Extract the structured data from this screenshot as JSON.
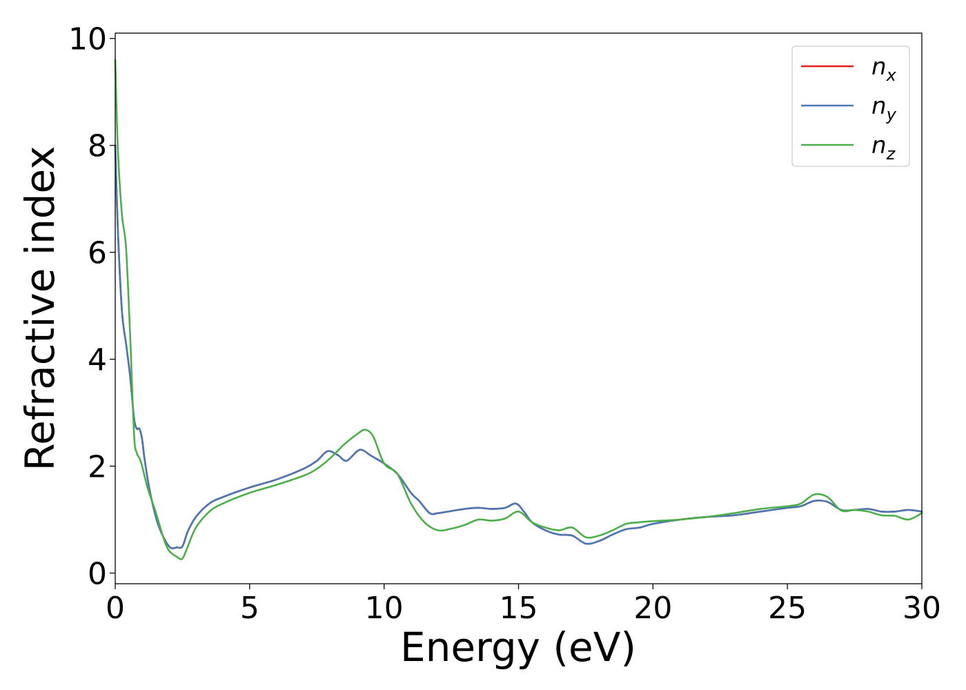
{
  "chart_data": {
    "type": "line",
    "title": "",
    "xlabel": "Energy (eV)",
    "ylabel": "Refractive index",
    "xlim": [
      0,
      30
    ],
    "ylim": [
      -0.2,
      10.1
    ],
    "xticks": [
      0,
      5,
      10,
      15,
      20,
      25,
      30
    ],
    "yticks": [
      0,
      2,
      4,
      6,
      8,
      10
    ],
    "grid": false,
    "legend_position": "top-right",
    "series": [
      {
        "name": "n",
        "subscript": "x",
        "color": "#e41a1c",
        "x": [
          0,
          0.1,
          0.25,
          0.4,
          0.55,
          0.7,
          0.8,
          0.9,
          1.0,
          1.1,
          1.3,
          1.6,
          2.0,
          2.3,
          2.5,
          2.7,
          3.0,
          3.5,
          4.0,
          5.0,
          6.0,
          7.0,
          7.5,
          7.8,
          8.0,
          8.3,
          8.6,
          9.0,
          9.2,
          9.5,
          10.0,
          10.5,
          11.0,
          11.3,
          11.7,
          12.0,
          12.5,
          13.0,
          13.5,
          14.0,
          14.5,
          14.9,
          15.2,
          15.5,
          16.0,
          16.5,
          17.0,
          17.5,
          18.0,
          18.5,
          19.0,
          19.5,
          20.0,
          21.0,
          22.0,
          23.0,
          24.0,
          25.0,
          25.5,
          26.0,
          26.5,
          27.0,
          27.5,
          28.0,
          28.5,
          29.0,
          29.5,
          30.0
        ],
        "y": [
          8.0,
          6.4,
          4.9,
          4.3,
          3.7,
          2.9,
          2.7,
          2.7,
          2.5,
          2.1,
          1.5,
          0.9,
          0.5,
          0.48,
          0.5,
          0.78,
          1.05,
          1.3,
          1.42,
          1.6,
          1.75,
          1.95,
          2.1,
          2.25,
          2.28,
          2.2,
          2.1,
          2.28,
          2.3,
          2.2,
          2.05,
          1.85,
          1.5,
          1.35,
          1.12,
          1.12,
          1.16,
          1.2,
          1.22,
          1.2,
          1.22,
          1.3,
          1.15,
          0.95,
          0.8,
          0.72,
          0.7,
          0.55,
          0.6,
          0.72,
          0.82,
          0.85,
          0.92,
          1.0,
          1.05,
          1.08,
          1.15,
          1.22,
          1.25,
          1.35,
          1.33,
          1.18,
          1.18,
          1.2,
          1.15,
          1.15,
          1.18,
          1.15
        ]
      },
      {
        "name": "n",
        "subscript": "y",
        "color": "#4a78b3",
        "x": [
          0,
          0.1,
          0.25,
          0.4,
          0.55,
          0.7,
          0.8,
          0.9,
          1.0,
          1.1,
          1.3,
          1.6,
          2.0,
          2.3,
          2.5,
          2.7,
          3.0,
          3.5,
          4.0,
          5.0,
          6.0,
          7.0,
          7.5,
          7.8,
          8.0,
          8.3,
          8.6,
          9.0,
          9.2,
          9.5,
          10.0,
          10.5,
          11.0,
          11.3,
          11.7,
          12.0,
          12.5,
          13.0,
          13.5,
          14.0,
          14.5,
          14.9,
          15.2,
          15.5,
          16.0,
          16.5,
          17.0,
          17.5,
          18.0,
          18.5,
          19.0,
          19.5,
          20.0,
          21.0,
          22.0,
          23.0,
          24.0,
          25.0,
          25.5,
          26.0,
          26.5,
          27.0,
          27.5,
          28.0,
          28.5,
          29.0,
          29.5,
          30.0
        ],
        "y": [
          8.0,
          6.4,
          4.9,
          4.3,
          3.7,
          2.9,
          2.7,
          2.7,
          2.5,
          2.1,
          1.5,
          0.9,
          0.5,
          0.48,
          0.5,
          0.78,
          1.05,
          1.3,
          1.42,
          1.6,
          1.75,
          1.95,
          2.1,
          2.25,
          2.28,
          2.2,
          2.1,
          2.28,
          2.3,
          2.2,
          2.05,
          1.85,
          1.5,
          1.35,
          1.12,
          1.12,
          1.16,
          1.2,
          1.22,
          1.2,
          1.22,
          1.3,
          1.15,
          0.95,
          0.8,
          0.72,
          0.7,
          0.55,
          0.6,
          0.72,
          0.82,
          0.85,
          0.92,
          1.0,
          1.05,
          1.08,
          1.15,
          1.22,
          1.25,
          1.35,
          1.33,
          1.18,
          1.18,
          1.2,
          1.15,
          1.15,
          1.18,
          1.15
        ]
      },
      {
        "name": "n",
        "subscript": "z",
        "color": "#4daf4a",
        "x": [
          0,
          0.1,
          0.25,
          0.4,
          0.55,
          0.7,
          0.8,
          0.9,
          1.0,
          1.2,
          1.5,
          1.8,
          2.0,
          2.3,
          2.5,
          2.7,
          3.0,
          3.5,
          4.0,
          5.0,
          6.0,
          7.0,
          7.5,
          8.0,
          8.5,
          9.0,
          9.3,
          9.6,
          10.0,
          10.5,
          11.0,
          11.5,
          12.0,
          12.5,
          13.0,
          13.5,
          14.0,
          14.5,
          15.0,
          15.5,
          16.0,
          16.5,
          17.0,
          17.5,
          18.0,
          18.5,
          19.0,
          19.5,
          20.0,
          21.0,
          22.0,
          23.0,
          24.0,
          25.0,
          25.5,
          26.0,
          26.5,
          27.0,
          27.5,
          28.0,
          28.5,
          29.0,
          29.5,
          30.0
        ],
        "y": [
          9.6,
          7.9,
          6.7,
          6.1,
          4.5,
          2.6,
          2.25,
          2.15,
          2.0,
          1.6,
          1.15,
          0.65,
          0.42,
          0.3,
          0.27,
          0.5,
          0.85,
          1.15,
          1.3,
          1.5,
          1.65,
          1.82,
          1.95,
          2.15,
          2.4,
          2.6,
          2.68,
          2.55,
          2.05,
          1.85,
          1.3,
          0.95,
          0.8,
          0.83,
          0.9,
          1.0,
          0.98,
          1.02,
          1.15,
          0.95,
          0.85,
          0.8,
          0.85,
          0.67,
          0.7,
          0.8,
          0.92,
          0.95,
          0.97,
          1.0,
          1.05,
          1.12,
          1.2,
          1.25,
          1.3,
          1.47,
          1.42,
          1.17,
          1.18,
          1.15,
          1.08,
          1.07,
          1.0,
          1.12
        ]
      }
    ]
  }
}
